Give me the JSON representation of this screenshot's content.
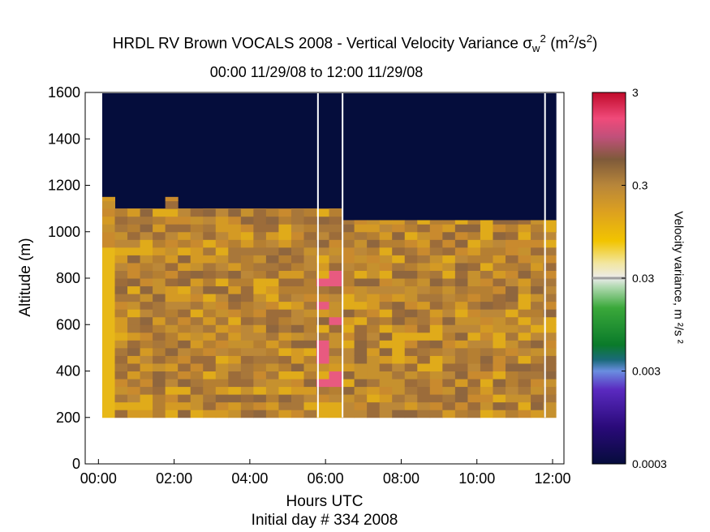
{
  "chart_data": {
    "type": "heatmap",
    "title": "HRDL RV Brown VOCALS 2008 - Vertical Velocity Variance",
    "title_symbol": "σ",
    "title_symbol_sub": "w",
    "title_symbol_sup": "2",
    "title_units": "(m",
    "title_units_sup": "2",
    "title_units_mid": "/s",
    "title_units_end": ")",
    "subtitle": "00:00 11/29/08 to 12:00 11/29/08",
    "xlabel": "Hours UTC",
    "caption": "Initial day # 334  2008",
    "ylabel": "Altitude (m)",
    "colorbar_label": "Velocity variance, m ²/s ²",
    "x_ticks": [
      "00:00",
      "02:00",
      "04:00",
      "06:00",
      "08:00",
      "10:00",
      "12:00"
    ],
    "xlim_hours": [
      -0.35,
      12.3
    ],
    "y_ticks": [
      "0",
      "200",
      "400",
      "600",
      "800",
      "1000",
      "1200",
      "1400",
      "1600"
    ],
    "ylim": [
      0,
      1600
    ],
    "colorbar_ticks": [
      "3",
      "0.3",
      "0.03",
      "0.003",
      "0.0003"
    ],
    "colorbar_range": [
      0.0003,
      3
    ],
    "colorbar_scale": "log",
    "background_color": "#050d3c",
    "altitude_bin_start": 200,
    "altitude_bin_size": 33.33,
    "data_start_hour": 0.1,
    "time_bin_hours": 0.333,
    "gap_lines_hours": [
      5.8,
      6.45,
      11.8
    ],
    "cloud_top_altitude_m": [
      1150,
      1100,
      1100,
      1100,
      1100,
      1150,
      1100,
      1100,
      1100,
      1100,
      1100,
      1100,
      1100,
      1100,
      1100,
      1100,
      1100,
      1100,
      1100,
      1050,
      1050,
      1050,
      1050,
      1050,
      1050,
      1050,
      1050,
      1050,
      1050,
      1050,
      1050,
      1050,
      1050,
      1050,
      1050,
      1050
    ]
  }
}
